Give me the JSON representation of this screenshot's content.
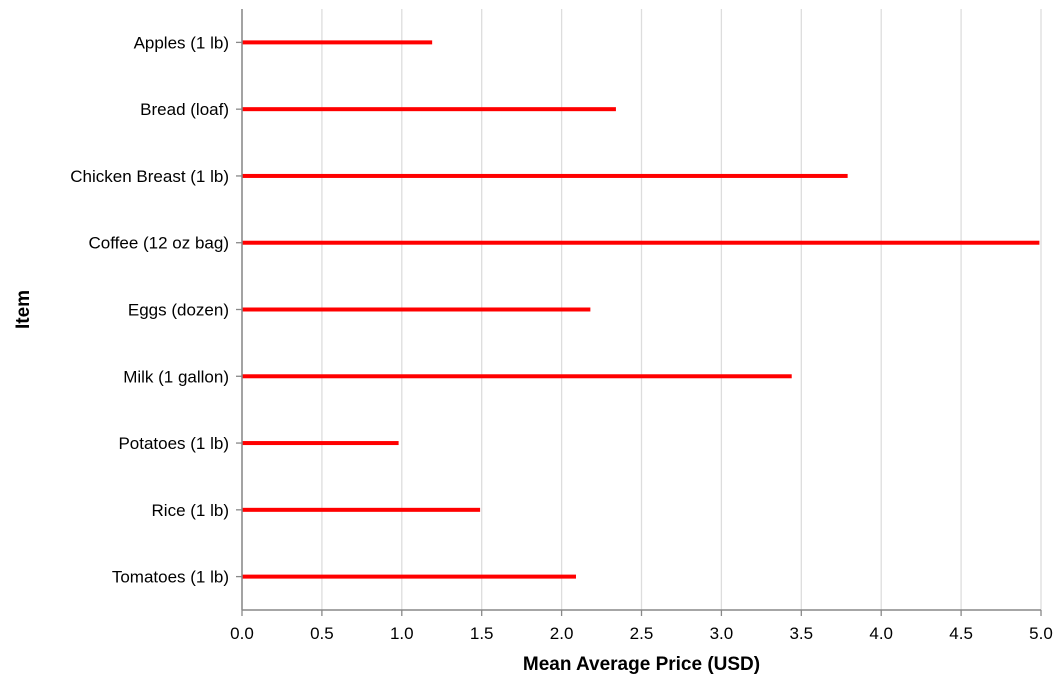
{
  "chart_data": {
    "type": "bar",
    "orientation": "horizontal",
    "mark_style": "thin-bar",
    "categories": [
      "Apples (1 lb)",
      "Bread (loaf)",
      "Chicken Breast (1 lb)",
      "Coffee (12 oz bag)",
      "Eggs (dozen)",
      "Milk (1 gallon)",
      "Potatoes (1 lb)",
      "Rice (1 lb)",
      "Tomatoes (1 lb)"
    ],
    "values": [
      1.19,
      2.34,
      3.79,
      4.99,
      2.18,
      3.44,
      0.98,
      1.49,
      2.09
    ],
    "xlabel": "Mean Average Price (USD)",
    "ylabel": "Item",
    "xlim": [
      0,
      5
    ],
    "xticks": [
      "0.0",
      "0.5",
      "1.0",
      "1.5",
      "2.0",
      "2.5",
      "3.0",
      "3.5",
      "4.0",
      "4.5",
      "5.0"
    ],
    "grid": "vertical",
    "legend": "none",
    "colors": {
      "bar": "#ff0000",
      "grid": "#dddddd",
      "axis": "#888888"
    }
  }
}
